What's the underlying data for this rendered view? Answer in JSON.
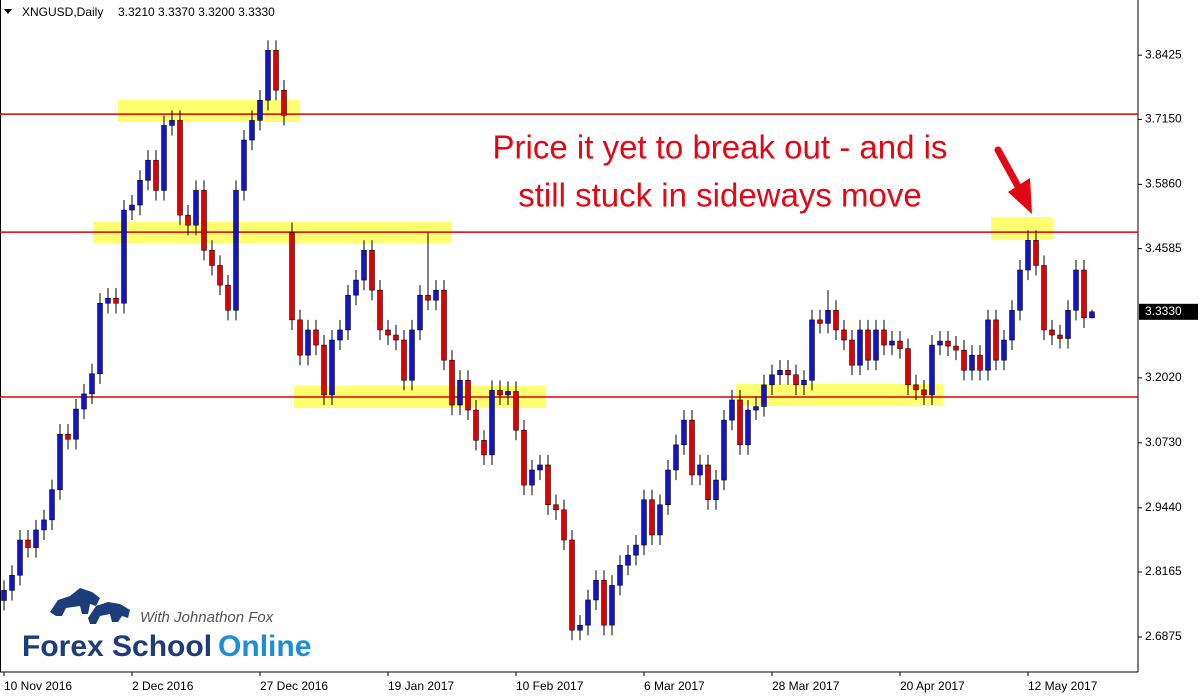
{
  "chart_data": {
    "type": "candlestick",
    "title": "XNGUSD,Daily",
    "subtitle": "3.3210 3.3370 3.3200 3.3330",
    "categories": [
      "10 Nov 2016",
      null,
      null,
      null,
      null,
      null,
      null,
      null,
      null,
      null,
      null,
      null,
      null,
      null,
      null,
      null,
      "2 Dec 2016",
      null,
      null,
      null,
      null,
      null,
      null,
      null,
      null,
      null,
      null,
      null,
      null,
      null,
      null,
      null,
      "27 Dec 2016",
      null,
      null,
      null,
      null,
      null,
      null,
      null,
      null,
      null,
      null,
      null,
      null,
      null,
      null,
      null,
      "19 Jan 2017",
      null,
      null,
      null,
      null,
      null,
      null,
      null,
      null,
      null,
      null,
      null,
      null,
      null,
      null,
      null,
      "10 Feb 2017",
      null,
      null,
      null,
      null,
      null,
      null,
      null,
      null,
      null,
      null,
      null,
      null,
      null,
      null,
      null,
      "6 Mar 2017",
      null,
      null,
      null,
      null,
      null,
      null,
      null,
      null,
      null,
      null,
      null,
      null,
      null,
      null,
      null,
      "28 Mar 2017",
      null,
      null,
      null,
      null,
      null,
      null,
      null,
      null,
      null,
      null,
      null,
      null,
      null,
      null,
      null,
      "20 Apr 2017",
      null,
      null,
      null,
      null,
      null,
      null,
      null,
      null,
      null,
      null,
      null,
      null,
      null,
      null,
      null,
      "12 May 2017",
      null,
      null,
      null,
      null,
      null,
      null,
      null,
      null
    ],
    "open": [
      2.76,
      2.78,
      2.81,
      2.88,
      2.865,
      2.9,
      2.92,
      2.98,
      3.09,
      3.08,
      3.14,
      3.17,
      3.21,
      3.35,
      3.36,
      3.35,
      3.535,
      3.545,
      3.594,
      3.634,
      3.574,
      3.703,
      3.713,
      3.525,
      3.505,
      3.574,
      3.455,
      3.425,
      3.386,
      3.336,
      3.574,
      3.674,
      3.713,
      3.753,
      3.852,
      3.773,
      3.49,
      3.317,
      3.247,
      3.297,
      3.267,
      3.168,
      3.277,
      3.297,
      3.366,
      3.396,
      3.455,
      3.376,
      3.297,
      3.287,
      3.277,
      3.197,
      3.297,
      3.366,
      3.356,
      3.376,
      3.237,
      3.148,
      3.197,
      3.138,
      3.078,
      3.049,
      3.177,
      3.168,
      3.175,
      3.098,
      2.989,
      3.019,
      3.029,
      2.95,
      2.94,
      2.88,
      2.701,
      2.711,
      2.761,
      2.8,
      2.711,
      2.79,
      2.83,
      2.85,
      2.87,
      2.96,
      2.89,
      2.95,
      3.019,
      3.069,
      3.118,
      3.009,
      3.029,
      2.96,
      2.999,
      3.118,
      3.158,
      3.069,
      3.138,
      3.145,
      3.188,
      3.208,
      3.217,
      3.208,
      3.188,
      3.197,
      3.317,
      3.31,
      3.336,
      3.297,
      3.277,
      3.227,
      3.297,
      3.237,
      3.297,
      3.267,
      3.275,
      3.26,
      3.188,
      3.178,
      3.168,
      3.267,
      3.275,
      3.265,
      3.257,
      3.217,
      3.247,
      3.217,
      3.317,
      3.237,
      3.277,
      3.336,
      3.416,
      3.475,
      3.425,
      3.297,
      3.287,
      3.28,
      3.336,
      3.416,
      3.321
    ],
    "high": [
      2.8,
      2.83,
      2.9,
      2.9,
      2.92,
      2.94,
      3.0,
      3.11,
      3.11,
      3.16,
      3.19,
      3.23,
      3.37,
      3.38,
      3.38,
      3.555,
      3.565,
      3.614,
      3.654,
      3.654,
      3.723,
      3.733,
      3.733,
      3.545,
      3.594,
      3.594,
      3.475,
      3.445,
      3.406,
      3.594,
      3.694,
      3.733,
      3.773,
      3.872,
      3.872,
      3.793,
      3.51,
      3.337,
      3.317,
      3.317,
      3.287,
      3.297,
      3.317,
      3.386,
      3.416,
      3.475,
      3.475,
      3.396,
      3.317,
      3.307,
      3.297,
      3.317,
      3.386,
      3.49,
      3.396,
      3.396,
      3.257,
      3.217,
      3.217,
      3.158,
      3.098,
      3.197,
      3.197,
      3.195,
      3.195,
      3.118,
      3.039,
      3.049,
      3.049,
      2.97,
      2.96,
      2.9,
      2.731,
      2.781,
      2.82,
      2.82,
      2.81,
      2.85,
      2.87,
      2.89,
      2.98,
      2.98,
      2.97,
      3.039,
      3.089,
      3.138,
      3.138,
      3.049,
      3.049,
      3.019,
      3.138,
      3.178,
      3.178,
      3.158,
      3.165,
      3.208,
      3.228,
      3.237,
      3.237,
      3.228,
      3.217,
      3.337,
      3.337,
      3.376,
      3.356,
      3.317,
      3.297,
      3.317,
      3.317,
      3.317,
      3.317,
      3.295,
      3.295,
      3.28,
      3.208,
      3.198,
      3.287,
      3.295,
      3.295,
      3.285,
      3.277,
      3.267,
      3.267,
      3.337,
      3.337,
      3.297,
      3.356,
      3.436,
      3.495,
      3.495,
      3.445,
      3.317,
      3.307,
      3.356,
      3.436,
      3.436,
      3.337
    ],
    "low": [
      2.74,
      2.76,
      2.79,
      2.845,
      2.845,
      2.88,
      2.9,
      2.96,
      3.06,
      3.06,
      3.12,
      3.15,
      3.19,
      3.33,
      3.33,
      3.33,
      3.515,
      3.525,
      3.574,
      3.554,
      3.554,
      3.683,
      3.505,
      3.485,
      3.485,
      3.435,
      3.405,
      3.366,
      3.316,
      3.316,
      3.554,
      3.654,
      3.693,
      3.733,
      3.753,
      3.703,
      3.297,
      3.227,
      3.227,
      3.247,
      3.148,
      3.148,
      3.257,
      3.277,
      3.346,
      3.376,
      3.356,
      3.277,
      3.267,
      3.257,
      3.177,
      3.177,
      3.277,
      3.336,
      3.336,
      3.217,
      3.128,
      3.128,
      3.118,
      3.058,
      3.029,
      3.029,
      3.148,
      3.148,
      3.078,
      2.969,
      2.969,
      2.999,
      2.93,
      2.92,
      2.86,
      2.681,
      2.681,
      2.691,
      2.741,
      2.691,
      2.691,
      2.77,
      2.81,
      2.83,
      2.85,
      2.87,
      2.87,
      2.93,
      2.999,
      3.049,
      2.989,
      2.989,
      2.94,
      2.94,
      2.979,
      3.098,
      3.049,
      3.049,
      3.118,
      3.125,
      3.168,
      3.188,
      3.188,
      3.168,
      3.168,
      3.177,
      3.29,
      3.29,
      3.277,
      3.257,
      3.207,
      3.207,
      3.217,
      3.217,
      3.247,
      3.247,
      3.24,
      3.168,
      3.158,
      3.148,
      3.148,
      3.247,
      3.245,
      3.237,
      3.197,
      3.197,
      3.197,
      3.197,
      3.217,
      3.217,
      3.257,
      3.316,
      3.396,
      3.405,
      3.277,
      3.267,
      3.26,
      3.26,
      3.316,
      3.301,
      3.32
    ],
    "close": [
      2.78,
      2.81,
      2.88,
      2.865,
      2.9,
      2.92,
      2.98,
      3.09,
      3.08,
      3.14,
      3.17,
      3.21,
      3.35,
      3.36,
      3.35,
      3.535,
      3.545,
      3.594,
      3.634,
      3.574,
      3.703,
      3.713,
      3.525,
      3.505,
      3.574,
      3.455,
      3.425,
      3.386,
      3.336,
      3.574,
      3.674,
      3.713,
      3.753,
      3.852,
      3.773,
      3.723,
      3.317,
      3.247,
      3.297,
      3.267,
      3.168,
      3.277,
      3.297,
      3.366,
      3.396,
      3.455,
      3.376,
      3.297,
      3.287,
      3.277,
      3.197,
      3.297,
      3.366,
      3.356,
      3.376,
      3.237,
      3.148,
      3.197,
      3.138,
      3.078,
      3.049,
      3.177,
      3.168,
      3.175,
      3.098,
      2.989,
      3.019,
      3.029,
      2.95,
      2.94,
      2.88,
      2.701,
      2.711,
      2.761,
      2.8,
      2.711,
      2.79,
      2.83,
      2.85,
      2.87,
      2.96,
      2.89,
      2.95,
      3.019,
      3.069,
      3.118,
      3.009,
      3.029,
      2.96,
      2.999,
      3.118,
      3.158,
      3.069,
      3.138,
      3.145,
      3.188,
      3.208,
      3.217,
      3.208,
      3.188,
      3.197,
      3.317,
      3.31,
      3.336,
      3.297,
      3.277,
      3.227,
      3.297,
      3.237,
      3.297,
      3.267,
      3.275,
      3.26,
      3.188,
      3.178,
      3.168,
      3.267,
      3.275,
      3.265,
      3.257,
      3.217,
      3.247,
      3.217,
      3.317,
      3.237,
      3.277,
      3.336,
      3.416,
      3.475,
      3.425,
      3.297,
      3.287,
      3.28,
      3.336,
      3.416,
      3.321,
      3.333
    ],
    "up_color": "#1515c8",
    "down_color": "#e00000",
    "wick_color": "#000000",
    "ylim": [
      2.618,
      3.952
    ],
    "yticks": [
      3.8425,
      {
        "value": 3.715,
        "label": "3.7150"
      },
      {
        "value": 3.586,
        "label": "3.5860"
      },
      3.4585,
      {
        "value": 3.202,
        "label": "3.2020"
      },
      {
        "value": 3.073,
        "label": "3.0730"
      },
      {
        "value": 2.944,
        "label": "2.9440"
      },
      2.8165,
      2.6875
    ],
    "last_price": {
      "value": 3.333,
      "label": "3.3330"
    },
    "hlines": [
      3.7254,
      3.4912,
      3.1638
    ],
    "hline_color": "#e00000",
    "grid": false,
    "annotations": [
      "Price it yet to break out - and is",
      "still stuck in sideways move"
    ]
  },
  "logo": {
    "tagline": "With Johnathon Fox",
    "name": [
      "Forex School",
      "Online"
    ]
  }
}
